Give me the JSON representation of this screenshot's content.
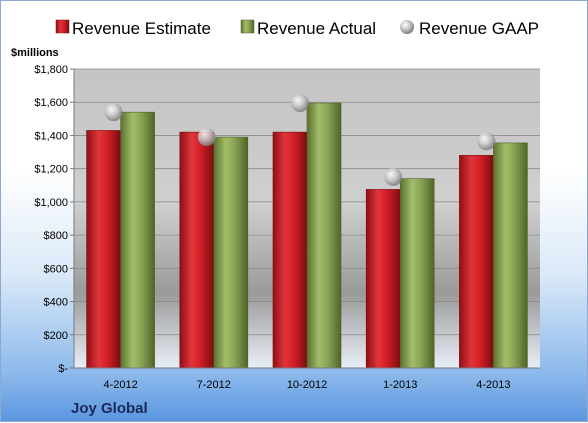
{
  "chart_data": {
    "type": "bar",
    "unit_label": "$millions",
    "company": "Joy Global",
    "categories": [
      "4-2012",
      "7-2012",
      "10-2012",
      "1-2013",
      "4-2013"
    ],
    "series": [
      {
        "name": "Revenue Estimate",
        "kind": "bar",
        "color": "#d6202a",
        "values": [
          1430,
          1420,
          1420,
          1075,
          1280
        ]
      },
      {
        "name": "Revenue Actual",
        "kind": "bar",
        "color": "#8aa556",
        "values": [
          1540,
          1390,
          1595,
          1140,
          1355
        ]
      },
      {
        "name": "Revenue GAAP",
        "kind": "marker",
        "color": "#c8c8c8",
        "values": [
          1540,
          1390,
          1595,
          1150,
          1365
        ]
      }
    ],
    "y_ticks": [
      "$-",
      "$200",
      "$400",
      "$600",
      "$800",
      "$1,000",
      "$1,200",
      "$1,400",
      "$1,600",
      "$1,800"
    ],
    "ylim": [
      0,
      1800
    ],
    "grid": true,
    "legend_position": "top"
  }
}
